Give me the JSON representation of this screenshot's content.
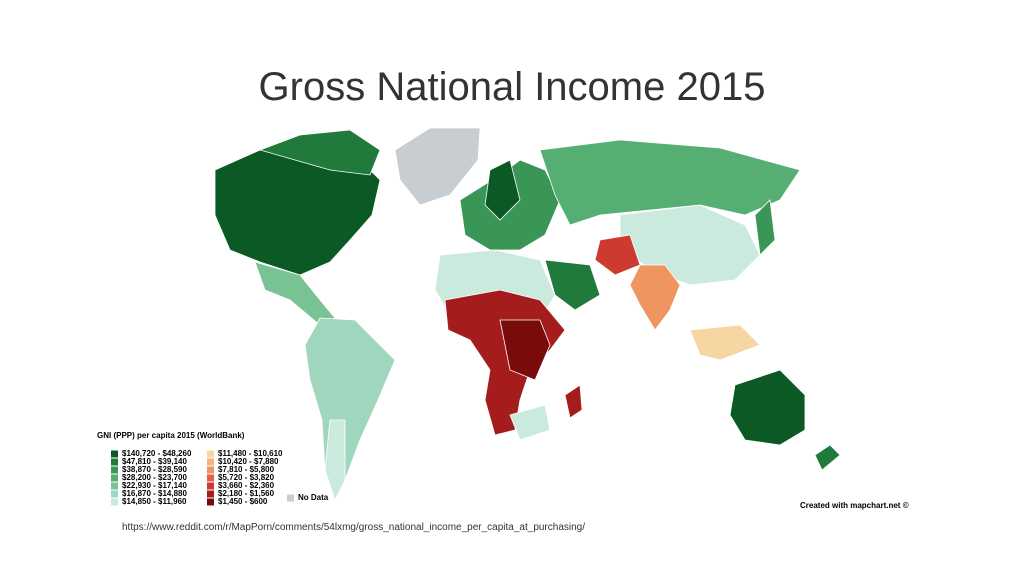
{
  "header": {
    "title": "Gross National Income 2015"
  },
  "legend": {
    "title": "GNI (PPP) per capita 2015 (WorldBank)",
    "items": [
      {
        "label": "$140,720 - $48,260",
        "color": "#0b5a26"
      },
      {
        "label": "$47,810 - $39,140",
        "color": "#1f7a3c"
      },
      {
        "label": "$38,870 - $28,590",
        "color": "#3a9656"
      },
      {
        "label": "$28,200 - $23,700",
        "color": "#55ae72"
      },
      {
        "label": "$22,930 - $17,140",
        "color": "#78c293"
      },
      {
        "label": "$16,870 - $14,880",
        "color": "#9fd6bd"
      },
      {
        "label": "$14,850 - $11,960",
        "color": "#cbeade"
      },
      {
        "label": "$11,480 - $10,610",
        "color": "#f6d7a3"
      },
      {
        "label": "$10,420 - $7,880",
        "color": "#f3b57c"
      },
      {
        "label": "$7,810 - $5,800",
        "color": "#ee9560"
      },
      {
        "label": "$5,720 - $3,820",
        "color": "#e0634a"
      },
      {
        "label": "$3,660 - $2,360",
        "color": "#cc3a30"
      },
      {
        "label": "$2,180 - $1,560",
        "color": "#a51c1c"
      },
      {
        "label": "$1,450 - $600",
        "color": "#7a0b0b"
      }
    ],
    "no_data": {
      "label": "No Data",
      "color": "#c8cdd2"
    }
  },
  "credit": "Created with mapchart.net ©",
  "source_url": "https://www.reddit.com/r/MapPorn/comments/54lxmg/gross_national_income_per_capita_at_purchasing/"
}
